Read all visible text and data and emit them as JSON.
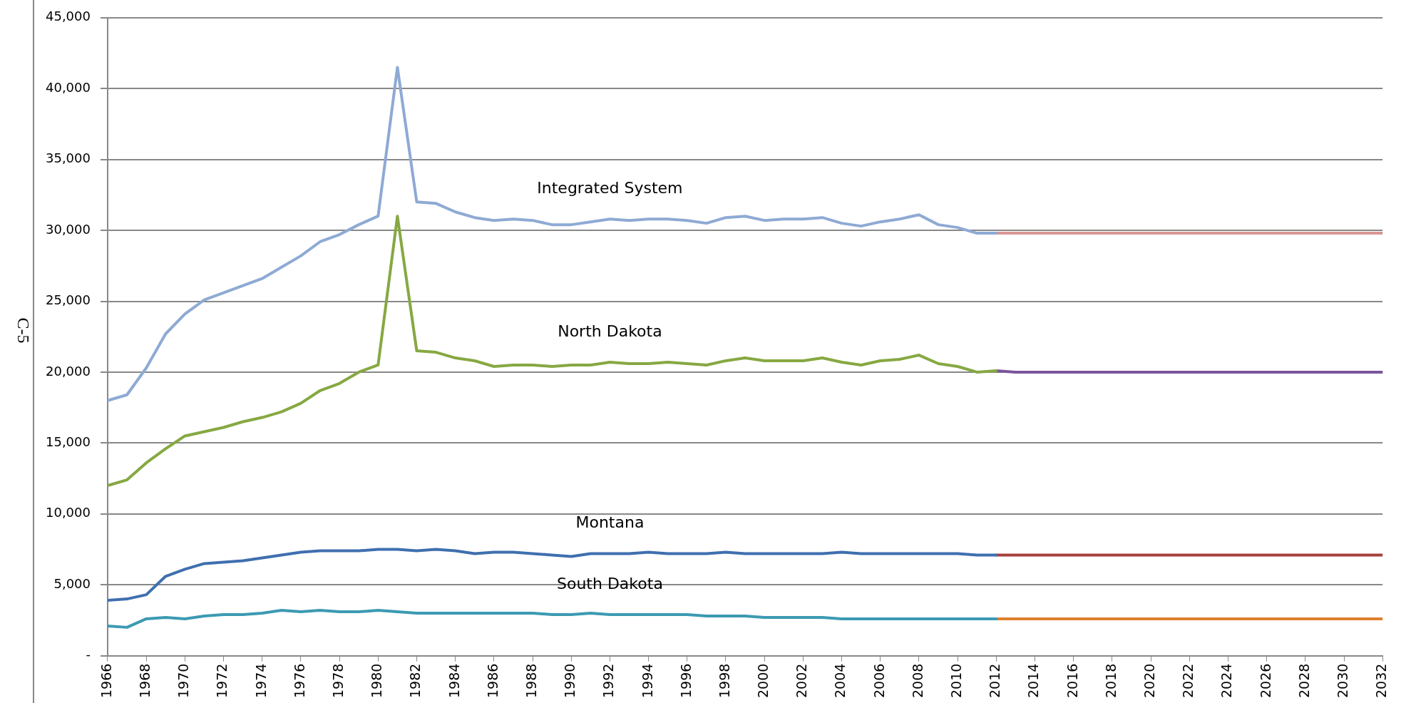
{
  "chart_data": {
    "type": "line",
    "xlim": [
      1966,
      2032
    ],
    "xticks": [
      1966,
      1968,
      1970,
      1972,
      1974,
      1976,
      1978,
      1980,
      1982,
      1984,
      1986,
      1988,
      1990,
      1992,
      1994,
      1996,
      1998,
      2000,
      2002,
      2004,
      2006,
      2008,
      2010,
      2012,
      2014,
      2016,
      2018,
      2020,
      2022,
      2024,
      2026,
      2028,
      2030,
      2032
    ],
    "ylim": [
      0,
      45000
    ],
    "yticks": [
      {
        "value": 0,
        "label": "-"
      },
      {
        "value": 5000,
        "label": "5,000"
      },
      {
        "value": 10000,
        "label": "10,000"
      },
      {
        "value": 15000,
        "label": "15,000"
      },
      {
        "value": 20000,
        "label": "20,000"
      },
      {
        "value": 25000,
        "label": "25,000"
      },
      {
        "value": 30000,
        "label": "30,000"
      },
      {
        "value": 35000,
        "label": "35,000"
      },
      {
        "value": 40000,
        "label": "40,000"
      },
      {
        "value": 45000,
        "label": "45,000"
      }
    ],
    "grid": "y",
    "legend": false,
    "marker": "none",
    "line_style": "solid",
    "series": [
      {
        "name": "Integrated System",
        "color": "#8eaad4",
        "x": [
          1966,
          1967,
          1968,
          1969,
          1970,
          1971,
          1972,
          1973,
          1974,
          1975,
          1976,
          1977,
          1978,
          1979,
          1980,
          1981,
          1982,
          1983,
          1984,
          1985,
          1986,
          1987,
          1988,
          1989,
          1990,
          1991,
          1992,
          1993,
          1994,
          1995,
          1996,
          1997,
          1998,
          1999,
          2000,
          2001,
          2002,
          2003,
          2004,
          2005,
          2006,
          2007,
          2008,
          2009,
          2010,
          2011,
          2012
        ],
        "values": [
          18000,
          18400,
          20300,
          22700,
          24100,
          25100,
          25600,
          26100,
          26600,
          27400,
          28200,
          29200,
          29700,
          30400,
          31000,
          41500,
          32000,
          31900,
          31300,
          30900,
          30700,
          30800,
          30700,
          30400,
          30400,
          30600,
          30800,
          30700,
          30800,
          30800,
          30700,
          30500,
          30900,
          31000,
          30700,
          30800,
          30800,
          30900,
          30500,
          30300,
          30600,
          30800,
          31100,
          30400,
          30200,
          29800,
          29800
        ]
      },
      {
        "color": "#d99694",
        "x": [
          2012,
          2013,
          2014,
          2015,
          2016,
          2017,
          2018,
          2019,
          2020,
          2021,
          2022,
          2023,
          2024,
          2025,
          2026,
          2027,
          2028,
          2029,
          2030,
          2031,
          2032
        ],
        "values": [
          29800,
          29800,
          29800,
          29800,
          29800,
          29800,
          29800,
          29800,
          29800,
          29800,
          29800,
          29800,
          29800,
          29800,
          29800,
          29800,
          29800,
          29800,
          29800,
          29800,
          29800
        ]
      },
      {
        "name": "North Dakota",
        "color": "#86a842",
        "x": [
          1966,
          1967,
          1968,
          1969,
          1970,
          1971,
          1972,
          1973,
          1974,
          1975,
          1976,
          1977,
          1978,
          1979,
          1980,
          1981,
          1982,
          1983,
          1984,
          1985,
          1986,
          1987,
          1988,
          1989,
          1990,
          1991,
          1992,
          1993,
          1994,
          1995,
          1996,
          1997,
          1998,
          1999,
          2000,
          2001,
          2002,
          2003,
          2004,
          2005,
          2006,
          2007,
          2008,
          2009,
          2010,
          2011,
          2012
        ],
        "values": [
          12000,
          12400,
          13600,
          14600,
          15500,
          15800,
          16100,
          16500,
          16800,
          17200,
          17800,
          18700,
          19200,
          20000,
          20500,
          31000,
          21500,
          21400,
          21000,
          20800,
          20400,
          20500,
          20500,
          20400,
          20500,
          20500,
          20700,
          20600,
          20600,
          20700,
          20600,
          20500,
          20800,
          21000,
          20800,
          20800,
          20800,
          21000,
          20700,
          20500,
          20800,
          20900,
          21200,
          20600,
          20400,
          20000,
          20100
        ]
      },
      {
        "color": "#7a559c",
        "x": [
          2012,
          2013,
          2014,
          2015,
          2016,
          2017,
          2018,
          2019,
          2020,
          2021,
          2022,
          2023,
          2024,
          2025,
          2026,
          2027,
          2028,
          2029,
          2030,
          2031,
          2032
        ],
        "values": [
          20100,
          20000,
          20000,
          20000,
          20000,
          20000,
          20000,
          20000,
          20000,
          20000,
          20000,
          20000,
          20000,
          20000,
          20000,
          20000,
          20000,
          20000,
          20000,
          20000,
          20000
        ]
      },
      {
        "name": "Montana",
        "color": "#3f6faf",
        "x": [
          1966,
          1967,
          1968,
          1969,
          1970,
          1971,
          1972,
          1973,
          1974,
          1975,
          1976,
          1977,
          1978,
          1979,
          1980,
          1981,
          1982,
          1983,
          1984,
          1985,
          1986,
          1987,
          1988,
          1989,
          1990,
          1991,
          1992,
          1993,
          1994,
          1995,
          1996,
          1997,
          1998,
          1999,
          2000,
          2001,
          2002,
          2003,
          2004,
          2005,
          2006,
          2007,
          2008,
          2009,
          2010,
          2011,
          2012
        ],
        "values": [
          3900,
          4000,
          4300,
          5600,
          6100,
          6500,
          6600,
          6700,
          6900,
          7100,
          7300,
          7400,
          7400,
          7400,
          7500,
          7500,
          7400,
          7500,
          7400,
          7200,
          7300,
          7300,
          7200,
          7100,
          7000,
          7200,
          7200,
          7200,
          7300,
          7200,
          7200,
          7200,
          7300,
          7200,
          7200,
          7200,
          7200,
          7200,
          7300,
          7200,
          7200,
          7200,
          7200,
          7200,
          7200,
          7100,
          7100
        ]
      },
      {
        "color": "#a5403c",
        "x": [
          2012,
          2013,
          2014,
          2015,
          2016,
          2017,
          2018,
          2019,
          2020,
          2021,
          2022,
          2023,
          2024,
          2025,
          2026,
          2027,
          2028,
          2029,
          2030,
          2031,
          2032
        ],
        "values": [
          7100,
          7100,
          7100,
          7100,
          7100,
          7100,
          7100,
          7100,
          7100,
          7100,
          7100,
          7100,
          7100,
          7100,
          7100,
          7100,
          7100,
          7100,
          7100,
          7100,
          7100
        ]
      },
      {
        "name": "South Dakota",
        "color": "#3c9ab3",
        "x": [
          1966,
          1967,
          1968,
          1969,
          1970,
          1971,
          1972,
          1973,
          1974,
          1975,
          1976,
          1977,
          1978,
          1979,
          1980,
          1981,
          1982,
          1983,
          1984,
          1985,
          1986,
          1987,
          1988,
          1989,
          1990,
          1991,
          1992,
          1993,
          1994,
          1995,
          1996,
          1997,
          1998,
          1999,
          2000,
          2001,
          2002,
          2003,
          2004,
          2005,
          2006,
          2007,
          2008,
          2009,
          2010,
          2011,
          2012
        ],
        "values": [
          2100,
          2000,
          2600,
          2700,
          2600,
          2800,
          2900,
          2900,
          3000,
          3200,
          3100,
          3200,
          3100,
          3100,
          3200,
          3100,
          3000,
          3000,
          3000,
          3000,
          3000,
          3000,
          3000,
          2900,
          2900,
          3000,
          2900,
          2900,
          2900,
          2900,
          2900,
          2800,
          2800,
          2800,
          2700,
          2700,
          2700,
          2700,
          2600,
          2600,
          2600,
          2600,
          2600,
          2600,
          2600,
          2600,
          2600
        ]
      },
      {
        "color": "#e07f2f",
        "x": [
          2012,
          2013,
          2014,
          2015,
          2016,
          2017,
          2018,
          2019,
          2020,
          2021,
          2022,
          2023,
          2024,
          2025,
          2026,
          2027,
          2028,
          2029,
          2030,
          2031,
          2032
        ],
        "values": [
          2600,
          2600,
          2600,
          2600,
          2600,
          2600,
          2600,
          2600,
          2600,
          2600,
          2600,
          2600,
          2600,
          2600,
          2600,
          2600,
          2600,
          2600,
          2600,
          2600,
          2600
        ]
      }
    ],
    "annotations": [
      "C-5"
    ]
  }
}
